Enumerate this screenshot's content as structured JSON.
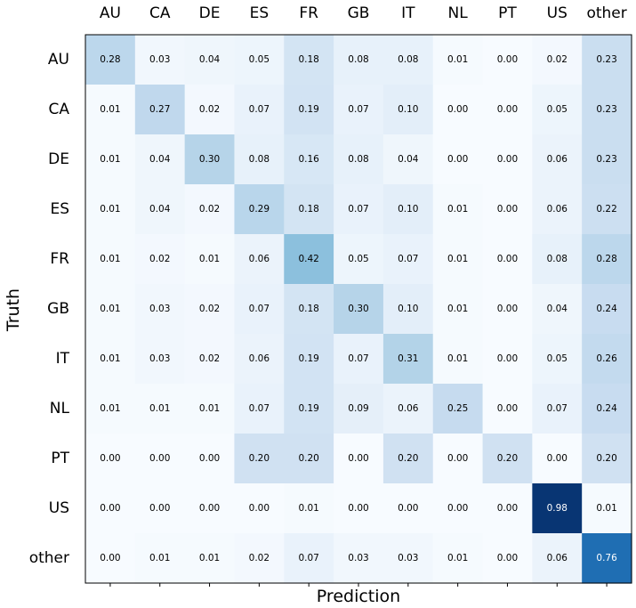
{
  "chart_data": {
    "type": "heatmap",
    "xlabel": "Prediction",
    "ylabel": "Truth",
    "x_categories": [
      "AU",
      "CA",
      "DE",
      "ES",
      "FR",
      "GB",
      "IT",
      "NL",
      "PT",
      "US",
      "other"
    ],
    "y_categories": [
      "AU",
      "CA",
      "DE",
      "ES",
      "FR",
      "GB",
      "IT",
      "NL",
      "PT",
      "US",
      "other"
    ],
    "values": [
      [
        "0.28",
        "0.03",
        "0.04",
        "0.05",
        "0.18",
        "0.08",
        "0.08",
        "0.01",
        "0.00",
        "0.02",
        "0.23"
      ],
      [
        "0.01",
        "0.27",
        "0.02",
        "0.07",
        "0.19",
        "0.07",
        "0.10",
        "0.00",
        "0.00",
        "0.05",
        "0.23"
      ],
      [
        "0.01",
        "0.04",
        "0.30",
        "0.08",
        "0.16",
        "0.08",
        "0.04",
        "0.00",
        "0.00",
        "0.06",
        "0.23"
      ],
      [
        "0.01",
        "0.04",
        "0.02",
        "0.29",
        "0.18",
        "0.07",
        "0.10",
        "0.01",
        "0.00",
        "0.06",
        "0.22"
      ],
      [
        "0.01",
        "0.02",
        "0.01",
        "0.06",
        "0.42",
        "0.05",
        "0.07",
        "0.01",
        "0.00",
        "0.08",
        "0.28"
      ],
      [
        "0.01",
        "0.03",
        "0.02",
        "0.07",
        "0.18",
        "0.30",
        "0.10",
        "0.01",
        "0.00",
        "0.04",
        "0.24"
      ],
      [
        "0.01",
        "0.03",
        "0.02",
        "0.06",
        "0.19",
        "0.07",
        "0.31",
        "0.01",
        "0.00",
        "0.05",
        "0.26"
      ],
      [
        "0.01",
        "0.01",
        "0.01",
        "0.07",
        "0.19",
        "0.09",
        "0.06",
        "0.25",
        "0.00",
        "0.07",
        "0.24"
      ],
      [
        "0.00",
        "0.00",
        "0.00",
        "0.20",
        "0.20",
        "0.00",
        "0.20",
        "0.00",
        "0.20",
        "0.00",
        "0.20"
      ],
      [
        "0.00",
        "0.00",
        "0.00",
        "0.00",
        "0.01",
        "0.00",
        "0.00",
        "0.00",
        "0.00",
        "0.98",
        "0.01"
      ],
      [
        "0.00",
        "0.01",
        "0.01",
        "0.02",
        "0.07",
        "0.03",
        "0.03",
        "0.01",
        "0.00",
        "0.06",
        "0.76"
      ]
    ],
    "value_range": [
      0,
      1
    ],
    "colormap": "Blues",
    "x_ticks_position": "top",
    "grid": false
  },
  "colors": {
    "colormap_stops": [
      "#f7fbff",
      "#deebf7",
      "#c6dbef",
      "#9ecae1",
      "#6baed6",
      "#4292c6",
      "#2171b5",
      "#08519c",
      "#08306b"
    ],
    "frame": "#000000",
    "text_dark": "#000000",
    "text_light": "#ffffff"
  }
}
